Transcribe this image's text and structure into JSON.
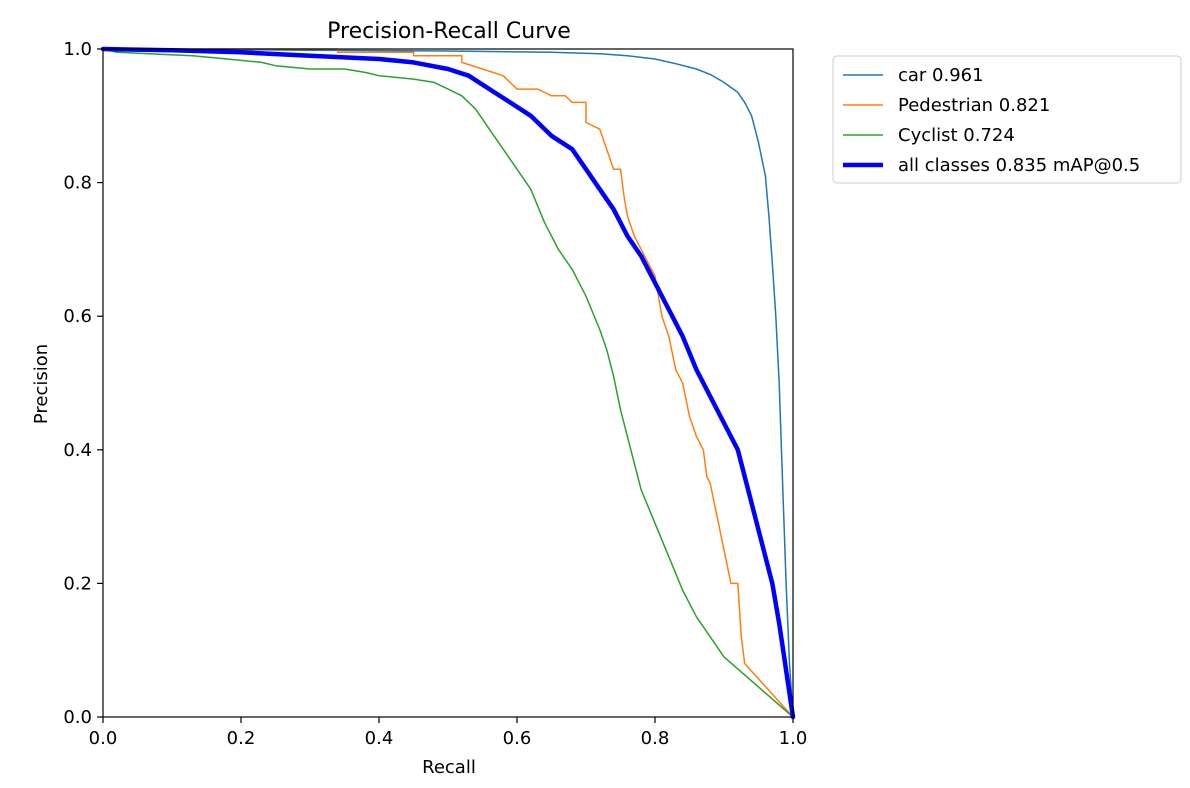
{
  "chart_data": {
    "type": "line",
    "title": "Precision-Recall Curve",
    "xlabel": "Recall",
    "ylabel": "Precision",
    "xlim": [
      0,
      1
    ],
    "ylim": [
      0,
      1
    ],
    "x_ticks": [
      "0.0",
      "0.2",
      "0.4",
      "0.6",
      "0.8",
      "1.0"
    ],
    "y_ticks": [
      "0.0",
      "0.2",
      "0.4",
      "0.6",
      "0.8",
      "1.0"
    ],
    "grid": false,
    "legend_position": "outside-top-right",
    "series": [
      {
        "name": "car 0.961",
        "color": "#1f77b4",
        "width": "thin",
        "points": [
          [
            0.0,
            1.0
          ],
          [
            0.1,
            1.0
          ],
          [
            0.3,
            0.998
          ],
          [
            0.5,
            0.997
          ],
          [
            0.65,
            0.995
          ],
          [
            0.72,
            0.993
          ],
          [
            0.76,
            0.99
          ],
          [
            0.8,
            0.985
          ],
          [
            0.83,
            0.978
          ],
          [
            0.86,
            0.97
          ],
          [
            0.88,
            0.962
          ],
          [
            0.9,
            0.95
          ],
          [
            0.92,
            0.935
          ],
          [
            0.93,
            0.92
          ],
          [
            0.94,
            0.9
          ],
          [
            0.95,
            0.86
          ],
          [
            0.96,
            0.81
          ],
          [
            0.965,
            0.75
          ],
          [
            0.97,
            0.68
          ],
          [
            0.975,
            0.6
          ],
          [
            0.98,
            0.5
          ],
          [
            0.985,
            0.35
          ],
          [
            0.99,
            0.2
          ],
          [
            0.995,
            0.08
          ],
          [
            1.0,
            0.0
          ]
        ]
      },
      {
        "name": "Pedestrian 0.821",
        "color": "#ff7f0e",
        "width": "thin",
        "points": [
          [
            0.0,
            1.0
          ],
          [
            0.34,
            1.0
          ],
          [
            0.34,
            0.995
          ],
          [
            0.45,
            0.995
          ],
          [
            0.45,
            0.99
          ],
          [
            0.52,
            0.99
          ],
          [
            0.52,
            0.98
          ],
          [
            0.55,
            0.97
          ],
          [
            0.58,
            0.96
          ],
          [
            0.6,
            0.94
          ],
          [
            0.63,
            0.94
          ],
          [
            0.65,
            0.93
          ],
          [
            0.67,
            0.93
          ],
          [
            0.68,
            0.92
          ],
          [
            0.7,
            0.92
          ],
          [
            0.7,
            0.89
          ],
          [
            0.72,
            0.88
          ],
          [
            0.73,
            0.85
          ],
          [
            0.74,
            0.82
          ],
          [
            0.75,
            0.82
          ],
          [
            0.755,
            0.78
          ],
          [
            0.76,
            0.75
          ],
          [
            0.77,
            0.72
          ],
          [
            0.78,
            0.7
          ],
          [
            0.79,
            0.68
          ],
          [
            0.8,
            0.66
          ],
          [
            0.81,
            0.6
          ],
          [
            0.82,
            0.57
          ],
          [
            0.83,
            0.52
          ],
          [
            0.84,
            0.5
          ],
          [
            0.85,
            0.45
          ],
          [
            0.86,
            0.42
          ],
          [
            0.87,
            0.4
          ],
          [
            0.875,
            0.36
          ],
          [
            0.88,
            0.35
          ],
          [
            0.89,
            0.3
          ],
          [
            0.9,
            0.25
          ],
          [
            0.91,
            0.2
          ],
          [
            0.92,
            0.2
          ],
          [
            0.925,
            0.12
          ],
          [
            0.93,
            0.08
          ],
          [
            1.0,
            0.0
          ]
        ]
      },
      {
        "name": "Cyclist 0.724",
        "color": "#2ca02c",
        "width": "thin",
        "points": [
          [
            0.0,
            1.0
          ],
          [
            0.02,
            0.995
          ],
          [
            0.13,
            0.99
          ],
          [
            0.18,
            0.985
          ],
          [
            0.23,
            0.98
          ],
          [
            0.25,
            0.975
          ],
          [
            0.3,
            0.97
          ],
          [
            0.35,
            0.97
          ],
          [
            0.38,
            0.965
          ],
          [
            0.4,
            0.96
          ],
          [
            0.45,
            0.955
          ],
          [
            0.48,
            0.95
          ],
          [
            0.5,
            0.94
          ],
          [
            0.52,
            0.93
          ],
          [
            0.54,
            0.91
          ],
          [
            0.56,
            0.88
          ],
          [
            0.58,
            0.85
          ],
          [
            0.6,
            0.82
          ],
          [
            0.62,
            0.79
          ],
          [
            0.64,
            0.74
          ],
          [
            0.66,
            0.7
          ],
          [
            0.68,
            0.67
          ],
          [
            0.7,
            0.63
          ],
          [
            0.72,
            0.58
          ],
          [
            0.73,
            0.55
          ],
          [
            0.74,
            0.51
          ],
          [
            0.75,
            0.46
          ],
          [
            0.76,
            0.42
          ],
          [
            0.77,
            0.38
          ],
          [
            0.78,
            0.34
          ],
          [
            0.8,
            0.29
          ],
          [
            0.82,
            0.24
          ],
          [
            0.84,
            0.19
          ],
          [
            0.86,
            0.15
          ],
          [
            0.88,
            0.12
          ],
          [
            0.9,
            0.09
          ],
          [
            1.0,
            0.0
          ]
        ]
      },
      {
        "name": "all classes 0.835 mAP@0.5",
        "color": "#0000ff",
        "width": "thick",
        "points": [
          [
            0.0,
            1.0
          ],
          [
            0.1,
            0.998
          ],
          [
            0.2,
            0.995
          ],
          [
            0.3,
            0.99
          ],
          [
            0.4,
            0.985
          ],
          [
            0.45,
            0.98
          ],
          [
            0.5,
            0.97
          ],
          [
            0.53,
            0.96
          ],
          [
            0.56,
            0.94
          ],
          [
            0.59,
            0.92
          ],
          [
            0.62,
            0.9
          ],
          [
            0.65,
            0.87
          ],
          [
            0.68,
            0.85
          ],
          [
            0.7,
            0.82
          ],
          [
            0.72,
            0.79
          ],
          [
            0.74,
            0.76
          ],
          [
            0.76,
            0.72
          ],
          [
            0.78,
            0.69
          ],
          [
            0.8,
            0.65
          ],
          [
            0.82,
            0.61
          ],
          [
            0.84,
            0.57
          ],
          [
            0.86,
            0.52
          ],
          [
            0.88,
            0.48
          ],
          [
            0.9,
            0.44
          ],
          [
            0.92,
            0.4
          ],
          [
            0.93,
            0.36
          ],
          [
            0.94,
            0.32
          ],
          [
            0.95,
            0.28
          ],
          [
            0.96,
            0.24
          ],
          [
            0.97,
            0.2
          ],
          [
            0.98,
            0.14
          ],
          [
            0.99,
            0.07
          ],
          [
            1.0,
            0.0
          ]
        ]
      }
    ]
  }
}
